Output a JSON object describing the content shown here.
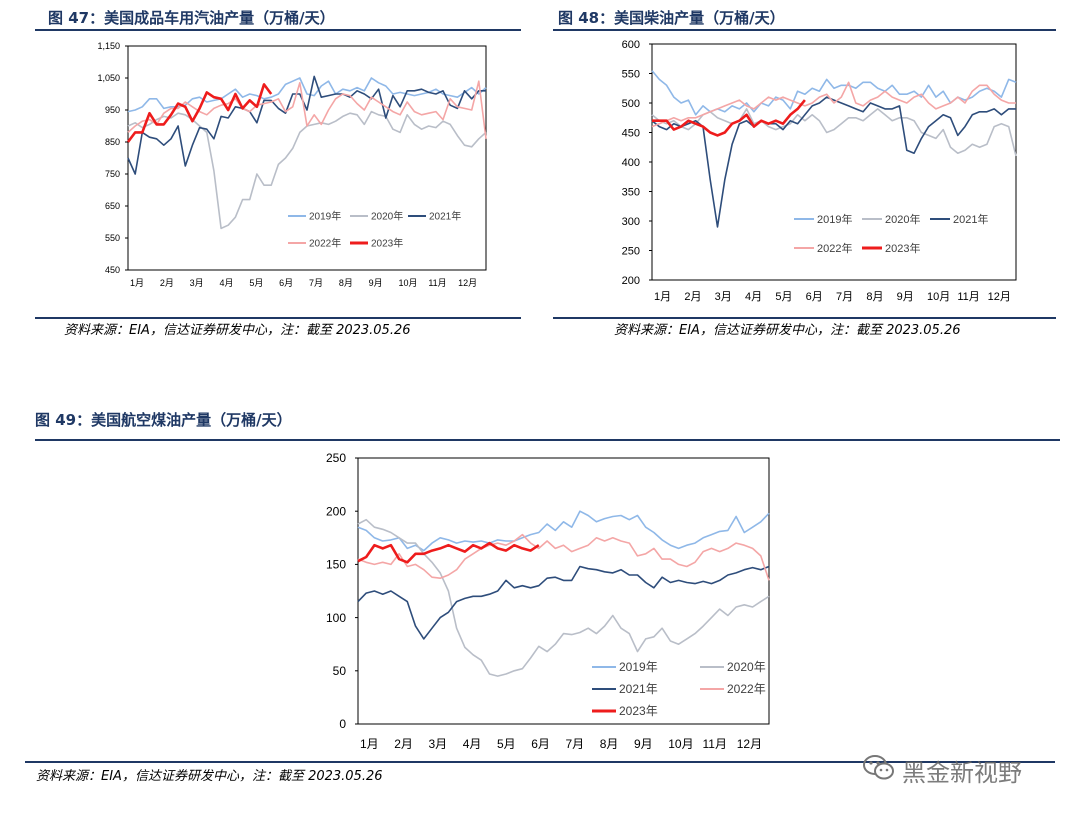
{
  "figures": {
    "fig47": {
      "title": "图 47：美国成品车用汽油产量（万桶/天）",
      "source": "资料来源：EIA，信达证券研发中心，注：截至 2023.05.26"
    },
    "fig48": {
      "title": "图 48：美国柴油产量（万桶/天）",
      "source": "资料来源：EIA，信达证券研发中心，注：截至 2023.05.26"
    },
    "fig49": {
      "title": "图 49：美国航空煤油产量（万桶/天）",
      "source": "资料来源：EIA，信达证券研发中心，注：截至 2023.05.26"
    }
  },
  "watermark": {
    "text": "黑金新视野",
    "icon": "wechat-icon"
  },
  "chart_data": [
    {
      "type": "line",
      "ylim": [
        450,
        1150
      ],
      "yticks": [
        "450",
        "550",
        "650",
        "750",
        "850",
        "950",
        "1,050",
        "1,150"
      ],
      "ytick_values": [
        450,
        550,
        650,
        750,
        850,
        950,
        1050,
        1150
      ],
      "xticks": [
        "1月",
        "2月",
        "3月",
        "4月",
        "5月",
        "6月",
        "7月",
        "8月",
        "9月",
        "10月",
        "11月",
        "12月"
      ],
      "grid": false,
      "legend_placement": "bottom-right",
      "series": [
        {
          "name": "2019年",
          "color": "#8fb8e8",
          "width": 1.6,
          "values": [
            945,
            950,
            960,
            985,
            985,
            955,
            960,
            960,
            965,
            985,
            990,
            975,
            980,
            985,
            1000,
            1015,
            990,
            1000,
            995,
            985,
            990,
            1000,
            1030,
            1040,
            1050,
            1000,
            995,
            1025,
            1040,
            1000,
            1015,
            1010,
            1020,
            1010,
            1050,
            1035,
            1025,
            1000,
            1005,
            1000,
            995,
            1000,
            1005,
            1015,
            1000,
            995,
            990,
            1005,
            1020,
            1000,
            1020
          ]
        },
        {
          "name": "2020年",
          "color": "#b9bec8",
          "width": 1.6,
          "values": [
            900,
            910,
            895,
            905,
            920,
            930,
            925,
            940,
            935,
            920,
            900,
            880,
            760,
            580,
            590,
            615,
            670,
            670,
            750,
            715,
            715,
            780,
            800,
            830,
            880,
            900,
            905,
            910,
            905,
            915,
            930,
            940,
            935,
            905,
            945,
            935,
            930,
            890,
            880,
            935,
            905,
            890,
            900,
            895,
            915,
            905,
            870,
            840,
            835,
            860,
            880
          ]
        },
        {
          "name": "2021年",
          "color": "#2e4d7b",
          "width": 1.6,
          "values": [
            800,
            750,
            880,
            865,
            860,
            840,
            860,
            900,
            775,
            840,
            895,
            890,
            860,
            930,
            925,
            960,
            955,
            945,
            910,
            980,
            980,
            955,
            940,
            1000,
            1000,
            950,
            1055,
            990,
            995,
            1000,
            1000,
            990,
            1010,
            1000,
            985,
            1015,
            925,
            995,
            960,
            1010,
            1010,
            1015,
            1005,
            1000,
            1010,
            965,
            955,
            1010,
            985,
            1010,
            1010
          ]
        },
        {
          "name": "2022年",
          "color": "#f4a6a6",
          "width": 1.6,
          "values": [
            880,
            900,
            915,
            920,
            905,
            940,
            955,
            955,
            975,
            960,
            945,
            935,
            955,
            965,
            970,
            985,
            955,
            945,
            965,
            970,
            975,
            985,
            945,
            960,
            1035,
            900,
            935,
            905,
            950,
            985,
            1000,
            995,
            970,
            950,
            990,
            975,
            960,
            945,
            935,
            975,
            945,
            935,
            940,
            945,
            920,
            985,
            960,
            955,
            950,
            1040,
            860
          ]
        },
        {
          "name": "2023年",
          "color": "#ee1c1c",
          "width": 2.6,
          "values": [
            850,
            880,
            880,
            940,
            905,
            905,
            935,
            970,
            960,
            915,
            955,
            1005,
            990,
            985,
            950,
            1000,
            955,
            980,
            960,
            1030,
            1000
          ]
        }
      ]
    },
    {
      "type": "line",
      "ylim": [
        200,
        600
      ],
      "yticks": [
        "200",
        "250",
        "300",
        "350",
        "400",
        "450",
        "500",
        "550",
        "600"
      ],
      "ytick_values": [
        200,
        250,
        300,
        350,
        400,
        450,
        500,
        550,
        600
      ],
      "xticks": [
        "1月",
        "2月",
        "3月",
        "4月",
        "5月",
        "6月",
        "7月",
        "8月",
        "9月",
        "10月",
        "11月",
        "12月"
      ],
      "grid": false,
      "legend_placement": "bottom-right",
      "series": [
        {
          "name": "2019年",
          "color": "#8fb8e8",
          "width": 1.6,
          "values": [
            555,
            540,
            530,
            510,
            500,
            505,
            480,
            495,
            485,
            490,
            485,
            495,
            490,
            500,
            485,
            500,
            495,
            510,
            505,
            490,
            520,
            515,
            525,
            520,
            540,
            525,
            530,
            530,
            525,
            535,
            535,
            525,
            520,
            530,
            515,
            515,
            520,
            510,
            530,
            510,
            520,
            500,
            510,
            505,
            510,
            520,
            525,
            520,
            510,
            540,
            535
          ]
        },
        {
          "name": "2020年",
          "color": "#b9bec8",
          "width": 1.6,
          "values": [
            480,
            470,
            465,
            470,
            460,
            455,
            465,
            480,
            485,
            475,
            470,
            465,
            470,
            490,
            465,
            470,
            460,
            455,
            460,
            465,
            480,
            470,
            480,
            470,
            450,
            455,
            465,
            475,
            475,
            470,
            480,
            490,
            480,
            470,
            475,
            475,
            470,
            450,
            445,
            440,
            455,
            425,
            415,
            420,
            430,
            425,
            430,
            460,
            465,
            460,
            410
          ]
        },
        {
          "name": "2021年",
          "color": "#2e4d7b",
          "width": 1.6,
          "values": [
            470,
            460,
            455,
            465,
            460,
            465,
            470,
            460,
            370,
            290,
            370,
            430,
            465,
            470,
            460,
            470,
            465,
            465,
            455,
            470,
            465,
            480,
            495,
            500,
            510,
            505,
            500,
            495,
            490,
            485,
            500,
            495,
            490,
            490,
            495,
            420,
            415,
            440,
            460,
            470,
            480,
            475,
            445,
            460,
            480,
            485,
            485,
            490,
            480,
            490,
            490
          ]
        },
        {
          "name": "2022年",
          "color": "#f4a6a6",
          "width": 1.6,
          "values": [
            460,
            465,
            470,
            475,
            470,
            475,
            475,
            480,
            485,
            490,
            495,
            500,
            505,
            495,
            490,
            500,
            510,
            505,
            510,
            505,
            500,
            495,
            500,
            510,
            515,
            500,
            510,
            535,
            500,
            495,
            505,
            510,
            520,
            510,
            505,
            500,
            510,
            515,
            500,
            490,
            495,
            500,
            510,
            500,
            520,
            530,
            530,
            515,
            505,
            500,
            500
          ]
        },
        {
          "name": "2023年",
          "color": "#ee1c1c",
          "width": 2.6,
          "values": [
            470,
            470,
            470,
            455,
            460,
            470,
            465,
            460,
            450,
            445,
            450,
            465,
            470,
            480,
            460,
            470,
            465,
            470,
            465,
            480,
            490,
            505
          ]
        }
      ]
    },
    {
      "type": "line",
      "ylim": [
        0,
        250
      ],
      "yticks": [
        "0",
        "50",
        "100",
        "150",
        "200",
        "250"
      ],
      "ytick_values": [
        0,
        50,
        100,
        150,
        200,
        250
      ],
      "xticks": [
        "1月",
        "2月",
        "3月",
        "4月",
        "5月",
        "6月",
        "7月",
        "8月",
        "9月",
        "10月",
        "11月",
        "12月"
      ],
      "grid": false,
      "legend_placement": "bottom-right",
      "series": [
        {
          "name": "2019年",
          "color": "#8fb8e8",
          "width": 1.6,
          "values": [
            185,
            182,
            175,
            172,
            173,
            175,
            165,
            168,
            163,
            170,
            175,
            173,
            170,
            172,
            171,
            172,
            170,
            173,
            172,
            172,
            175,
            178,
            180,
            188,
            182,
            190,
            185,
            200,
            196,
            190,
            193,
            195,
            196,
            192,
            196,
            185,
            180,
            173,
            168,
            165,
            168,
            170,
            175,
            178,
            181,
            182,
            195,
            180,
            185,
            190,
            198
          ]
        },
        {
          "name": "2020年",
          "color": "#b9bec8",
          "width": 1.6,
          "values": [
            188,
            192,
            185,
            183,
            180,
            175,
            170,
            170,
            160,
            152,
            142,
            125,
            90,
            72,
            65,
            60,
            47,
            45,
            47,
            50,
            52,
            62,
            73,
            68,
            75,
            85,
            84,
            86,
            90,
            85,
            92,
            102,
            90,
            85,
            68,
            80,
            82,
            90,
            78,
            75,
            80,
            85,
            92,
            100,
            108,
            102,
            110,
            112,
            110,
            115,
            120
          ]
        },
        {
          "name": "2021年",
          "color": "#2e4d7b",
          "width": 1.6,
          "values": [
            115,
            123,
            125,
            122,
            125,
            120,
            115,
            92,
            80,
            90,
            100,
            105,
            115,
            118,
            120,
            120,
            122,
            125,
            135,
            128,
            130,
            128,
            130,
            137,
            138,
            135,
            135,
            148,
            146,
            145,
            143,
            142,
            145,
            140,
            140,
            133,
            128,
            138,
            133,
            135,
            133,
            132,
            134,
            132,
            135,
            140,
            142,
            145,
            147,
            145,
            148
          ]
        },
        {
          "name": "2022年",
          "color": "#f4a6a6",
          "width": 1.6,
          "values": [
            155,
            152,
            150,
            152,
            150,
            160,
            148,
            150,
            145,
            138,
            137,
            140,
            145,
            155,
            160,
            165,
            168,
            170,
            168,
            172,
            178,
            170,
            165,
            172,
            165,
            168,
            162,
            165,
            168,
            175,
            172,
            175,
            172,
            170,
            158,
            160,
            165,
            155,
            155,
            150,
            148,
            152,
            162,
            165,
            162,
            165,
            170,
            168,
            165,
            158,
            135
          ]
        },
        {
          "name": "2023年",
          "color": "#ee1c1c",
          "width": 2.6,
          "values": [
            153,
            157,
            168,
            165,
            168,
            155,
            152,
            160,
            160,
            163,
            165,
            168,
            165,
            162,
            168,
            165,
            170,
            165,
            163,
            168,
            165,
            163,
            168
          ]
        }
      ]
    }
  ]
}
